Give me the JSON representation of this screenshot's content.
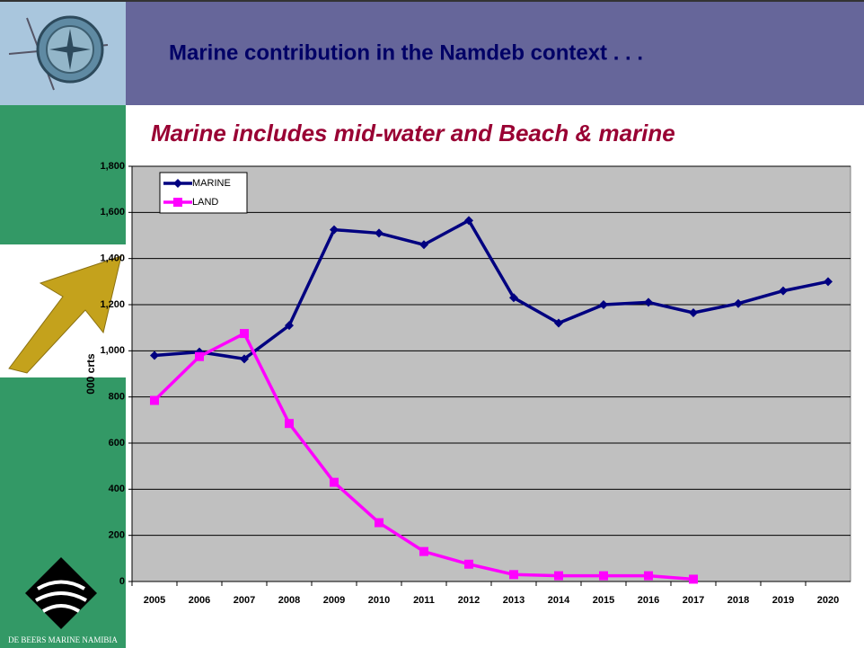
{
  "header": {
    "title": "Marine contribution in the Namdeb context . . ."
  },
  "footer": {
    "brand": "DE BEERS MARINE NAMIBIA"
  },
  "chart_data": {
    "type": "line",
    "title": "Marine includes mid-water and Beach & marine",
    "y_label": "000 crts",
    "categories": [
      "2005",
      "2006",
      "2007",
      "2008",
      "2009",
      "2010",
      "2011",
      "2012",
      "2013",
      "2014",
      "2015",
      "2016",
      "2017",
      "2018",
      "2019",
      "2020"
    ],
    "series": [
      {
        "name": "MARINE",
        "color": "#000080",
        "marker": "diamond",
        "values": [
          980,
          995,
          965,
          1110,
          1525,
          1510,
          1460,
          1565,
          1230,
          1120,
          1200,
          1210,
          1165,
          1205,
          1260,
          1300
        ]
      },
      {
        "name": "LAND",
        "color": "#ff00ff",
        "marker": "square",
        "values": [
          785,
          975,
          1075,
          685,
          430,
          255,
          130,
          75,
          30,
          25,
          25,
          25,
          10,
          null,
          null,
          null
        ]
      }
    ],
    "ylim": [
      0,
      1800
    ],
    "yticks": [
      0,
      200,
      400,
      600,
      800,
      {
        "value": 1000,
        "label": "1,000"
      },
      {
        "value": 1200,
        "label": "1,200"
      },
      {
        "value": 1400,
        "label": "1,400"
      },
      {
        "value": 1600,
        "label": "1,600"
      },
      {
        "value": 1800,
        "label": "1,800"
      }
    ],
    "grid": true,
    "legend": "top-left",
    "plot_background": "#c0c0c0"
  }
}
